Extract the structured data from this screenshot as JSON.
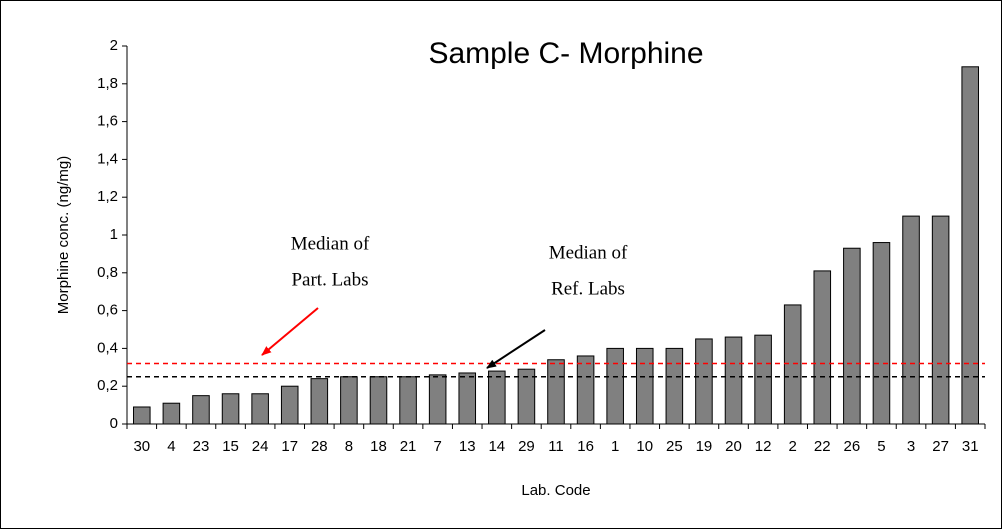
{
  "chart_data": {
    "type": "bar",
    "title": "Sample C- Morphine",
    "x_label": "Lab. Code",
    "y_label": "Morphine conc. (ng/mg)",
    "categories": [
      "30",
      "4",
      "23",
      "15",
      "24",
      "17",
      "28",
      "8",
      "18",
      "21",
      "7",
      "13",
      "14",
      "29",
      "11",
      "16",
      "1",
      "10",
      "25",
      "19",
      "20",
      "12",
      "2",
      "22",
      "26",
      "5",
      "3",
      "27",
      "31"
    ],
    "values": [
      0.09,
      0.11,
      0.15,
      0.16,
      0.16,
      0.2,
      0.24,
      0.25,
      0.25,
      0.25,
      0.26,
      0.27,
      0.28,
      0.29,
      0.34,
      0.36,
      0.4,
      0.4,
      0.4,
      0.45,
      0.46,
      0.47,
      0.63,
      0.81,
      0.93,
      0.96,
      1.1,
      1.1,
      1.89
    ],
    "color": "#808080",
    "ylim": [
      0,
      2
    ],
    "yticks": [
      0,
      {
        "value": 0.2,
        "label": "0,2"
      },
      {
        "value": 0.4,
        "label": "0,4"
      },
      {
        "value": 0.6,
        "label": "0,6"
      },
      {
        "value": 0.8,
        "label": "0,8"
      },
      1,
      {
        "value": 1.2,
        "label": "1,2"
      },
      {
        "value": 1.4,
        "label": "1,4"
      },
      {
        "value": 1.6,
        "label": "1,6"
      },
      {
        "value": 1.8,
        "label": "1,8"
      },
      2
    ],
    "grid": false,
    "annotations": [
      {
        "text": [
          "Median of",
          "Part. Labs"
        ],
        "value": 0.32,
        "color": "#ff0000"
      },
      {
        "text": [
          "Median of",
          "Ref. Labs"
        ],
        "value": 0.25,
        "color": "#000000"
      }
    ]
  }
}
